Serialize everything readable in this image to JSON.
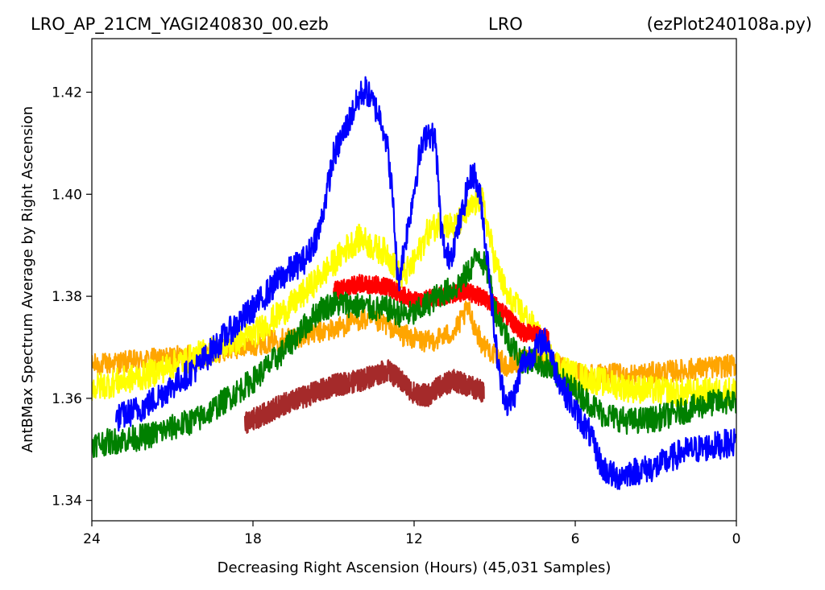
{
  "header": {
    "filename": "LRO_AP_21CM_YAGI240830_00.ezb",
    "site": "LRO",
    "script": "(ezPlot240108a.py)"
  },
  "chart_data": {
    "type": "line",
    "xlabel": "Decreasing Right Ascension (Hours) (45,031 Samples)",
    "ylabel": "AntBMax Spectrum Average by Right Ascension",
    "xlim": [
      24,
      0
    ],
    "ylim": [
      1.336,
      1.4305
    ],
    "x_ticks": [
      24,
      18,
      12,
      6,
      0
    ],
    "x_tick_labels": [
      "24",
      "18",
      "12",
      "6",
      "0"
    ],
    "y_ticks": [
      1.34,
      1.36,
      1.38,
      1.4,
      1.42
    ],
    "y_tick_labels": [
      "1.34",
      "1.36",
      "1.38",
      "1.40",
      "1.42"
    ],
    "grid": false,
    "series": [
      {
        "color": "#ffa500",
        "noise": 0.0022,
        "x": [
          24,
          22,
          20,
          18,
          16.5,
          15,
          14,
          13,
          12.5,
          11.5,
          10.5,
          10,
          9.5,
          8.5,
          7.5,
          7,
          6,
          4,
          2,
          0
        ],
        "y": [
          1.3665,
          1.3675,
          1.3685,
          1.3705,
          1.372,
          1.3735,
          1.3755,
          1.3745,
          1.3725,
          1.371,
          1.373,
          1.3775,
          1.371,
          1.366,
          1.3685,
          1.367,
          1.365,
          1.3645,
          1.3655,
          1.3665
        ],
        "x_range": [
          24,
          0
        ]
      },
      {
        "color": "#ffff00",
        "noise": 0.0028,
        "x": [
          24,
          22,
          20,
          18,
          16.5,
          15,
          14.5,
          14,
          13.5,
          13,
          12.5,
          12,
          11.5,
          11,
          10.5,
          10,
          9.5,
          9,
          8.5,
          8,
          7.5,
          7,
          6.5,
          6,
          4,
          2,
          0
        ],
        "y": [
          1.362,
          1.3645,
          1.3685,
          1.3725,
          1.3785,
          1.3865,
          1.3895,
          1.3915,
          1.3895,
          1.3885,
          1.3835,
          1.3865,
          1.3925,
          1.3945,
          1.3935,
          1.3965,
          1.3995,
          1.387,
          1.3795,
          1.377,
          1.3735,
          1.3685,
          1.366,
          1.3645,
          1.362,
          1.361,
          1.3615
        ],
        "x_range": [
          24,
          0
        ]
      },
      {
        "color": "#ff0000",
        "noise": 0.0018,
        "x": [
          15,
          14,
          13,
          12,
          11,
          10,
          9,
          8,
          7.5,
          7
        ],
        "y": [
          1.381,
          1.3825,
          1.382,
          1.379,
          1.38,
          1.381,
          1.3785,
          1.373,
          1.3725,
          1.3715
        ],
        "x_range": [
          15,
          7
        ]
      },
      {
        "color": "#a52a2a",
        "noise": 0.0022,
        "x": [
          18.3,
          17,
          16,
          15,
          14,
          13.5,
          13,
          12.5,
          12,
          11.5,
          11,
          10.5,
          10,
          9.5
        ],
        "y": [
          1.355,
          1.3585,
          1.3605,
          1.3625,
          1.3635,
          1.3645,
          1.3655,
          1.3635,
          1.361,
          1.3605,
          1.3625,
          1.3635,
          1.3625,
          1.3615
        ],
        "x_range": [
          18.3,
          9.4
        ]
      },
      {
        "color": "#008000",
        "noise": 0.0026,
        "x": [
          24,
          22,
          20,
          18,
          17,
          16,
          15.5,
          15,
          14.5,
          14,
          13.5,
          13,
          12.5,
          12,
          11.5,
          11,
          10.5,
          10,
          9.6,
          9.2,
          9,
          8.5,
          8,
          7.5,
          7,
          6.5,
          6,
          5,
          4,
          3,
          2,
          1,
          0
        ],
        "y": [
          1.351,
          1.3525,
          1.356,
          1.3635,
          1.3685,
          1.3745,
          1.3775,
          1.3785,
          1.3785,
          1.378,
          1.3775,
          1.3775,
          1.3765,
          1.3765,
          1.3785,
          1.3805,
          1.3815,
          1.3845,
          1.3885,
          1.384,
          1.3775,
          1.3715,
          1.3675,
          1.3675,
          1.366,
          1.3635,
          1.3615,
          1.357,
          1.3555,
          1.356,
          1.3575,
          1.359,
          1.3595
        ],
        "x_range": [
          24,
          0
        ]
      },
      {
        "color": "#0000ff",
        "noise": 0.0028,
        "x": [
          23.1,
          22,
          21,
          20,
          19,
          18,
          17,
          16,
          15.5,
          15,
          14.5,
          14,
          13.8,
          13.5,
          13.2,
          13,
          12.8,
          12.6,
          12.5,
          12.2,
          12,
          11.8,
          11.5,
          11.2,
          11,
          10.8,
          10.6,
          10.5,
          10.2,
          10,
          9.8,
          9.5,
          9.3,
          9.2,
          9,
          8.8,
          8.5,
          8.2,
          8,
          7.8,
          7.5,
          7.2,
          7,
          6.8,
          6.5,
          6,
          5.5,
          5,
          4.5,
          4,
          3,
          2,
          1,
          0
        ],
        "y": [
          1.356,
          1.3585,
          1.3625,
          1.3665,
          1.3725,
          1.3775,
          1.3835,
          1.3875,
          1.3935,
          1.4075,
          1.4135,
          1.4195,
          1.4205,
          1.4175,
          1.4145,
          1.4095,
          1.3995,
          1.3825,
          1.3855,
          1.3945,
          1.401,
          1.4075,
          1.4125,
          1.4105,
          1.3935,
          1.3875,
          1.3885,
          1.3905,
          1.3965,
          1.4015,
          1.4045,
          1.3985,
          1.3885,
          1.3845,
          1.3725,
          1.3635,
          1.3585,
          1.3615,
          1.3665,
          1.3675,
          1.3695,
          1.3715,
          1.3705,
          1.3665,
          1.3625,
          1.3575,
          1.3535,
          1.3465,
          1.3445,
          1.3455,
          1.3465,
          1.3495,
          1.3505,
          1.3515
        ],
        "x_range": [
          23.1,
          0
        ]
      }
    ]
  }
}
